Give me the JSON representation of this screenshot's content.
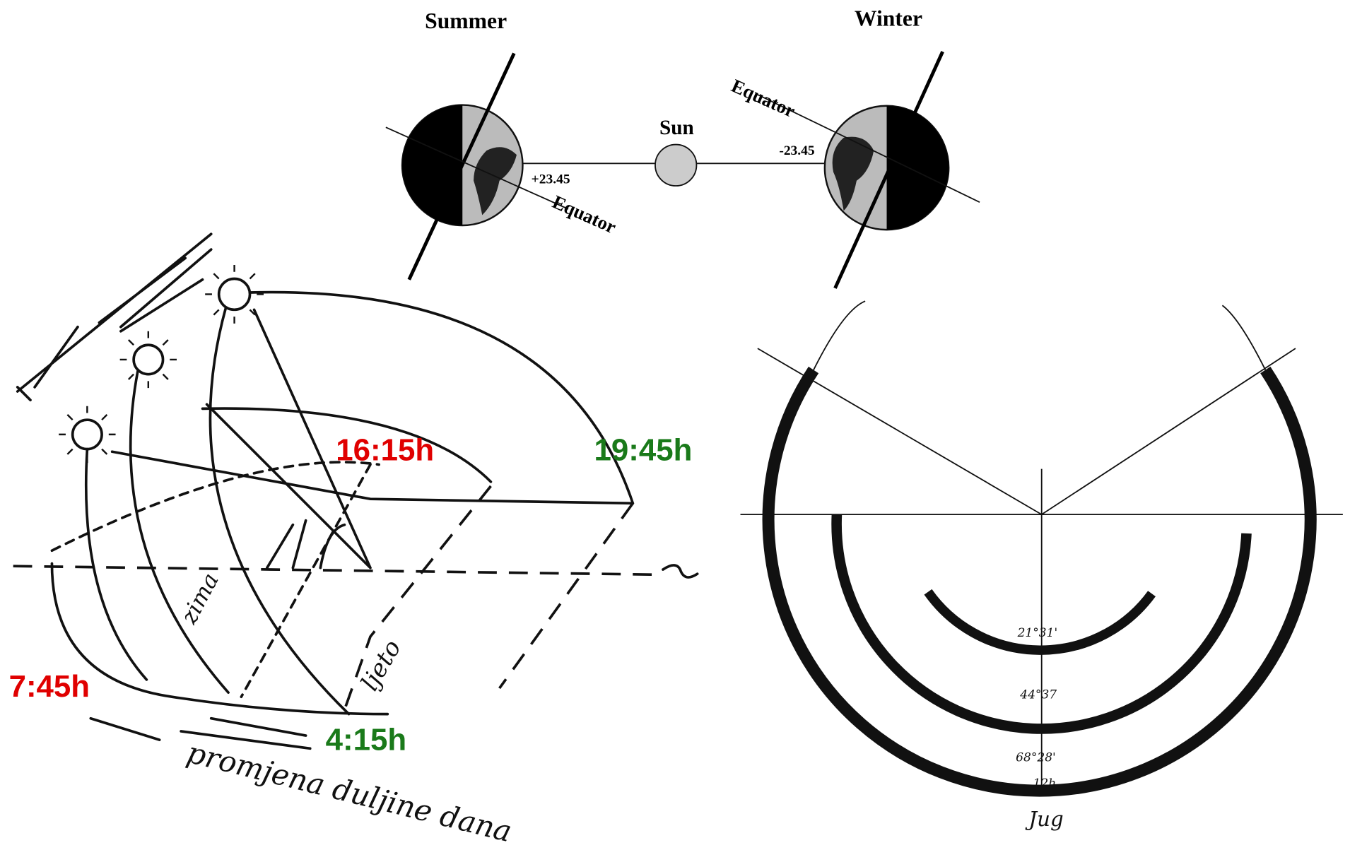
{
  "labels": {
    "summer": "Summer",
    "winter": "Winter",
    "sun": "Sun",
    "equator_summer": "Equator",
    "equator_winter": "Equator",
    "tilt_summer": "+23.45",
    "tilt_winter": "-23.45",
    "time_winter_sunset": "16:15h",
    "time_summer_sunset": "19:45h",
    "time_winter_sunrise": "7:45h",
    "time_summer_sunrise": "4:15h",
    "zima": "zima",
    "ljeto": "ljeto",
    "day_length_change": "promjena duljine dana",
    "south": "Jug",
    "sundial_outer": "68°28'",
    "sundial_middle": "44°37",
    "sundial_inner": "21°31'",
    "noon": "12h"
  }
}
